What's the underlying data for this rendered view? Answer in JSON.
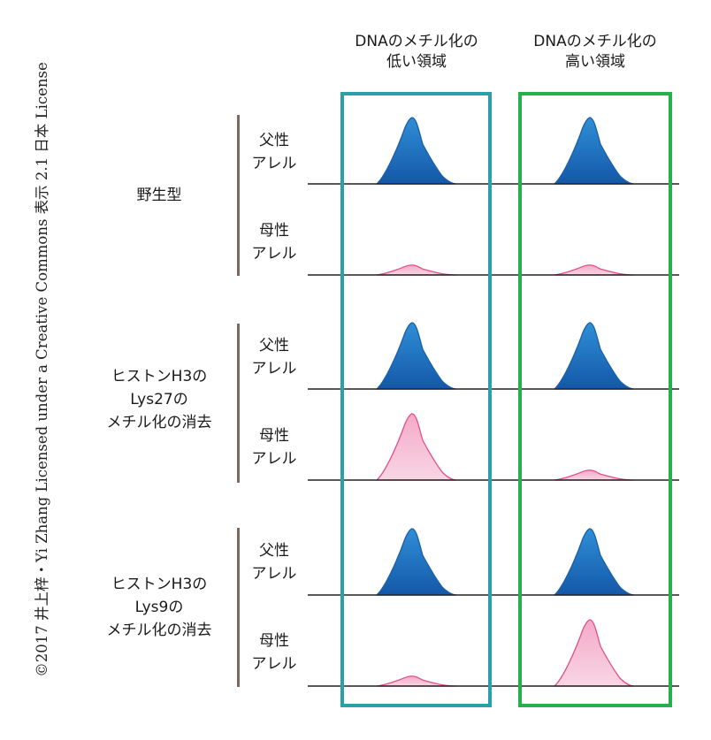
{
  "copyright": "©2017 井上梓・Yi Zhang Licensed under a Creative Commons 表示 2.1 日本 License",
  "columns": [
    {
      "lines": [
        "DNAのメチル化の",
        "低い領域"
      ],
      "border_color": "#2aa0a8"
    },
    {
      "lines": [
        "DNAのメチル化の",
        "高い領域"
      ],
      "border_color": "#25b04b"
    }
  ],
  "groups": [
    {
      "lines": [
        "野生型"
      ]
    },
    {
      "lines": [
        "ヒストンH3の",
        "Lys27の",
        "メチル化の消去"
      ]
    },
    {
      "lines": [
        "ヒストンH3の",
        "Lys9の",
        "メチル化の消去"
      ]
    }
  ],
  "alleles": {
    "paternal": [
      "父性",
      "アレル"
    ],
    "maternal": [
      "母性",
      "アレル"
    ]
  },
  "colors": {
    "paternal_fill_top": "#2f8fd6",
    "paternal_fill_bottom": "#1458a8",
    "paternal_stroke": "#1a5fa8",
    "maternal_fill_top": "#f4a9c8",
    "maternal_fill_bottom": "#f8d6e4",
    "maternal_stroke": "#e0508c",
    "bracket": "#7a6a60"
  },
  "chart_data": {
    "type": "diagram",
    "description_values": "relative expression peak height (0-1) per allele row and region column",
    "rows": [
      {
        "group": "野生型",
        "allele": "父性アレル",
        "kind": "paternal",
        "low_methylation_region": 1.0,
        "high_methylation_region": 1.0
      },
      {
        "group": "野生型",
        "allele": "母性アレル",
        "kind": "maternal",
        "low_methylation_region": 0.15,
        "high_methylation_region": 0.15
      },
      {
        "group": "ヒストンH3のLys27のメチル化の消去",
        "allele": "父性アレル",
        "kind": "paternal",
        "low_methylation_region": 1.0,
        "high_methylation_region": 1.0
      },
      {
        "group": "ヒストンH3のLys27のメチル化の消去",
        "allele": "母性アレル",
        "kind": "maternal",
        "low_methylation_region": 1.0,
        "high_methylation_region": 0.15
      },
      {
        "group": "ヒストンH3のLys9のメチル化の消去",
        "allele": "父性アレル",
        "kind": "paternal",
        "low_methylation_region": 1.0,
        "high_methylation_region": 1.0
      },
      {
        "group": "ヒストンH3のLys9のメチル化の消去",
        "allele": "母性アレル",
        "kind": "maternal",
        "low_methylation_region": 0.15,
        "high_methylation_region": 1.0
      }
    ]
  }
}
